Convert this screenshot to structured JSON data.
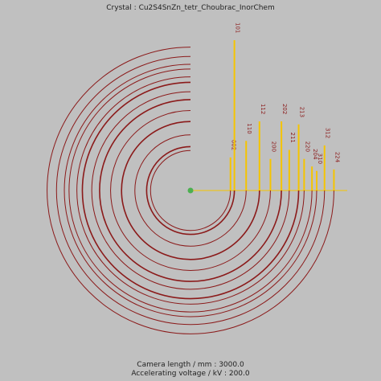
{
  "header": {
    "title": "Crystal : Cu2S4SnZn_tetr_Choubrac_InorChem"
  },
  "pattern": {
    "type": "ring-diffraction",
    "ring_color": "#8b1a1a",
    "peak_color": "#f5c400",
    "radius_max": 200,
    "intensity_max": 100,
    "peaks": [
      {
        "label": "002",
        "radius": 51,
        "intensity": 22
      },
      {
        "label": "101",
        "radius": 56,
        "intensity": 100
      },
      {
        "label": "110",
        "radius": 71,
        "intensity": 33
      },
      {
        "label": "112",
        "radius": 88,
        "intensity": 46
      },
      {
        "label": "200",
        "radius": 102,
        "intensity": 21
      },
      {
        "label": "202",
        "radius": 116,
        "intensity": 46
      },
      {
        "label": "211",
        "radius": 126,
        "intensity": 27
      },
      {
        "label": "213",
        "radius": 138,
        "intensity": 44
      },
      {
        "label": "220",
        "radius": 145,
        "intensity": 21
      },
      {
        "label": "204",
        "radius": 155,
        "intensity": 16
      },
      {
        "label": "310",
        "radius": 161,
        "intensity": 13
      },
      {
        "label": "312",
        "radius": 171,
        "intensity": 30
      },
      {
        "label": "224",
        "radius": 183,
        "intensity": 14
      }
    ]
  },
  "footer": {
    "camera_length": "Camera length / mm : 3000.0",
    "voltage": "Accelerating voltage / kV : 200.0"
  }
}
